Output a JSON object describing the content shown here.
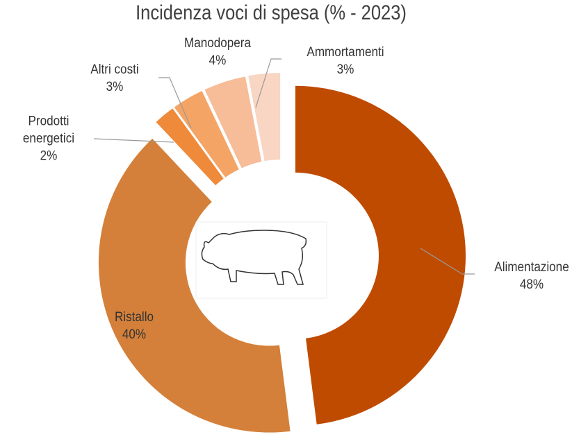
{
  "chart_data": {
    "type": "donut",
    "title": "Incidenza voci di spesa (% - 2023)",
    "categories": [
      "Alimentazione",
      "Ristallo",
      "Prodotti energetici",
      "Altri costi",
      "Manodopera",
      "Ammortamenti"
    ],
    "values": [
      48,
      40,
      2,
      3,
      4,
      3
    ],
    "value_labels": [
      "48%",
      "40%",
      "2%",
      "3%",
      "4%",
      "3%"
    ],
    "colors": [
      "#bf4b00",
      "#d4803a",
      "#ef8a3a",
      "#f4a465",
      "#f7bc98",
      "#f9d5c3"
    ]
  }
}
